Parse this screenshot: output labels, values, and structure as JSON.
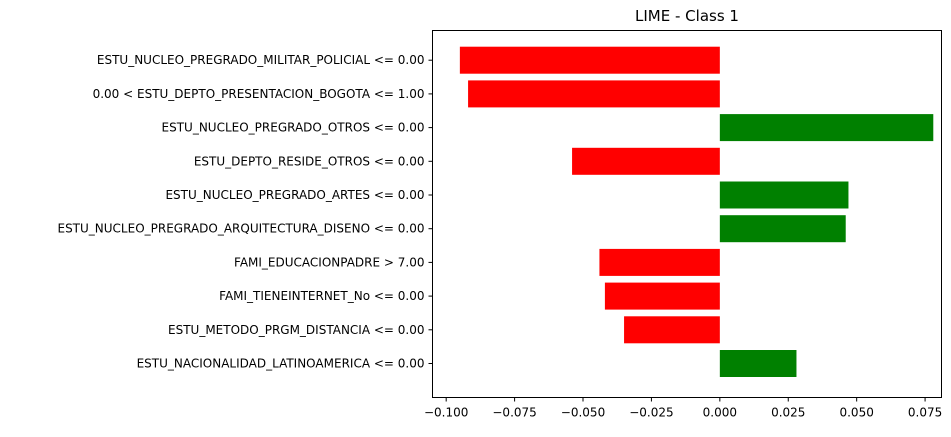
{
  "chart_data": {
    "type": "bar",
    "orientation": "horizontal",
    "title": "LIME - Class 1",
    "xlabel": "",
    "ylabel": "",
    "xlim": [
      -0.105,
      0.081
    ],
    "grid": false,
    "positive_color": "#008000",
    "negative_color": "#ff0000",
    "xticks": [
      -0.1,
      -0.075,
      -0.05,
      -0.025,
      0.0,
      0.025,
      0.05,
      0.075
    ],
    "xtick_labels": [
      "−0.100",
      "−0.075",
      "−0.050",
      "−0.025",
      "0.000",
      "0.025",
      "0.050",
      "0.075"
    ],
    "categories": [
      "ESTU_NUCLEO_PREGRADO_MILITAR_POLICIAL <= 0.00",
      "0.00 < ESTU_DEPTO_PRESENTACION_BOGOTA <= 1.00",
      "ESTU_NUCLEO_PREGRADO_OTROS <= 0.00",
      "ESTU_DEPTO_RESIDE_OTROS <= 0.00",
      "ESTU_NUCLEO_PREGRADO_ARTES <= 0.00",
      "ESTU_NUCLEO_PREGRADO_ARQUITECTURA_DISENO <= 0.00",
      "FAMI_EDUCACIONPADRE > 7.00",
      "FAMI_TIENEINTERNET_No <= 0.00",
      "ESTU_METODO_PRGM_DISTANCIA <= 0.00",
      "ESTU_NACIONALIDAD_LATINOAMERICA <= 0.00"
    ],
    "values": [
      -0.095,
      -0.092,
      0.078,
      -0.054,
      0.047,
      0.046,
      -0.044,
      -0.042,
      -0.035,
      0.028
    ]
  }
}
